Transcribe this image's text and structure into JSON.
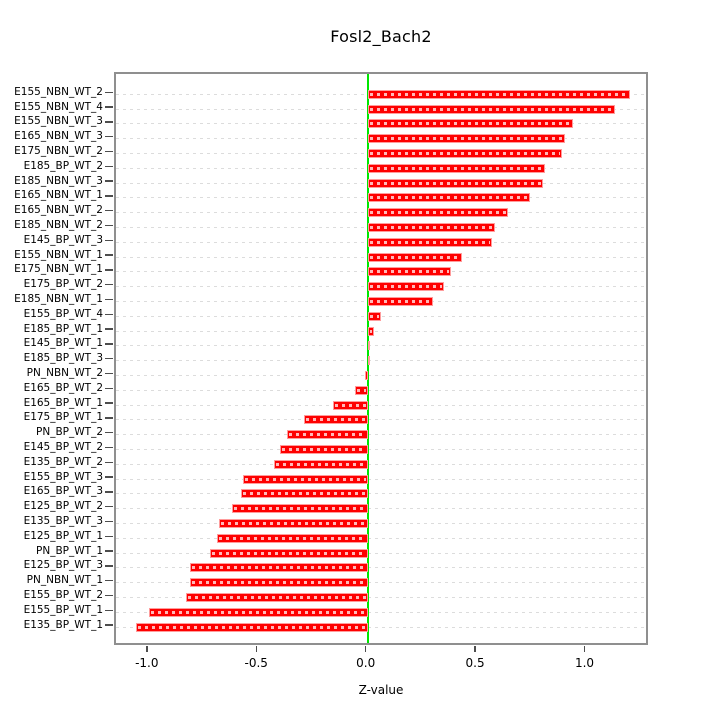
{
  "chart_data": {
    "type": "bar",
    "orientation": "horizontal",
    "title": "Fosl2_Bach2",
    "xlabel": "Z-value",
    "ylabel": "",
    "grid": true,
    "legend_position": "none",
    "xlim": [
      -1.15,
      1.29
    ],
    "xticks": [
      -1.0,
      -0.5,
      0.0,
      0.5,
      1.0
    ],
    "xtick_labels": [
      "-1.0",
      "-0.5",
      "0.0",
      "0.5",
      "1.0"
    ],
    "categories": [
      "E155_NBN_WT_2",
      "E155_NBN_WT_4",
      "E155_NBN_WT_3",
      "E165_NBN_WT_3",
      "E175_NBN_WT_2",
      "E185_BP_WT_2",
      "E185_NBN_WT_3",
      "E165_NBN_WT_1",
      "E165_NBN_WT_2",
      "E185_NBN_WT_2",
      "E145_BP_WT_3",
      "E155_NBN_WT_1",
      "E175_NBN_WT_1",
      "E175_BP_WT_2",
      "E185_NBN_WT_1",
      "E155_BP_WT_4",
      "E185_BP_WT_1",
      "E145_BP_WT_1",
      "E185_BP_WT_3",
      "PN_NBN_WT_2",
      "E165_BP_WT_2",
      "E165_BP_WT_1",
      "E175_BP_WT_1",
      "PN_BP_WT_2",
      "E145_BP_WT_2",
      "E135_BP_WT_2",
      "E155_BP_WT_3",
      "E165_BP_WT_3",
      "E125_BP_WT_2",
      "E135_BP_WT_3",
      "E125_BP_WT_1",
      "PN_BP_WT_1",
      "E125_BP_WT_3",
      "PN_NBN_WT_1",
      "E155_BP_WT_2",
      "E155_BP_WT_1",
      "E135_BP_WT_1"
    ],
    "values": [
      1.2,
      1.13,
      0.94,
      0.9,
      0.89,
      0.81,
      0.8,
      0.74,
      0.64,
      0.58,
      0.57,
      0.43,
      0.38,
      0.35,
      0.3,
      0.06,
      0.03,
      0.01,
      0.005,
      -0.01,
      -0.06,
      -0.16,
      -0.29,
      -0.37,
      -0.4,
      -0.43,
      -0.57,
      -0.58,
      -0.62,
      -0.68,
      -0.69,
      -0.72,
      -0.81,
      -0.81,
      -0.83,
      -1.0,
      -1.06
    ],
    "colors": {
      "bar": "#fe0000",
      "bar_border": "#ff9c9c",
      "bar_dash_overlay": "rgba(255,255,255,0.72)",
      "zero_line": "#00e600",
      "gridline": "#dcdcdc",
      "axis": "#4d4d4d",
      "box": "#8f8f8f",
      "text": "#000000",
      "background": "#ffffff"
    }
  }
}
